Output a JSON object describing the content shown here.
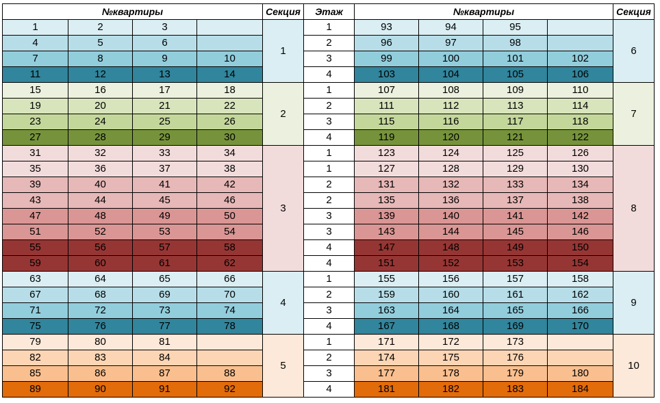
{
  "headers": {
    "apartments": "№квартиры",
    "section": "Секция",
    "floor": "Этаж"
  },
  "palettes": {
    "blue": {
      "section": "#DAEEF3",
      "rows": [
        "#DAEEF3",
        "#B7DEE8",
        "#92CDDC",
        "#31859C"
      ]
    },
    "green": {
      "section": "#EBF1DE",
      "rows": [
        "#EBF1DE",
        "#D8E4BC",
        "#C4D79B",
        "#76933C"
      ]
    },
    "red": {
      "section": "#F2DCDB",
      "rows": [
        "#F2DCDB",
        "#F2DCDB",
        "#E6B8B7",
        "#E6B8B7",
        "#DA9694",
        "#DA9694",
        "#963634",
        "#963634"
      ]
    },
    "orange": {
      "section": "#FDE9D9",
      "rows": [
        "#FDE9D9",
        "#FCD5B4",
        "#FABF8F",
        "#E26B0A"
      ]
    }
  },
  "groups": [
    {
      "palette": "blue",
      "left_section": "1",
      "right_section": "6",
      "rows": [
        {
          "left": [
            "1",
            "2",
            "3",
            ""
          ],
          "floor": "1",
          "right": [
            "93",
            "94",
            "95",
            ""
          ]
        },
        {
          "left": [
            "4",
            "5",
            "6",
            ""
          ],
          "floor": "2",
          "right": [
            "96",
            "97",
            "98",
            ""
          ]
        },
        {
          "left": [
            "7",
            "8",
            "9",
            "10"
          ],
          "floor": "3",
          "right": [
            "99",
            "100",
            "101",
            "102"
          ]
        },
        {
          "left": [
            "11",
            "12",
            "13",
            "14"
          ],
          "floor": "4",
          "right": [
            "103",
            "104",
            "105",
            "106"
          ]
        }
      ]
    },
    {
      "palette": "green",
      "left_section": "2",
      "right_section": "7",
      "rows": [
        {
          "left": [
            "15",
            "16",
            "17",
            "18"
          ],
          "floor": "1",
          "right": [
            "107",
            "108",
            "109",
            "110"
          ]
        },
        {
          "left": [
            "19",
            "20",
            "21",
            "22"
          ],
          "floor": "2",
          "right": [
            "111",
            "112",
            "113",
            "114"
          ]
        },
        {
          "left": [
            "23",
            "24",
            "25",
            "26"
          ],
          "floor": "3",
          "right": [
            "115",
            "116",
            "117",
            "118"
          ]
        },
        {
          "left": [
            "27",
            "28",
            "29",
            "30"
          ],
          "floor": "4",
          "right": [
            "119",
            "120",
            "121",
            "122"
          ]
        }
      ]
    },
    {
      "palette": "red",
      "left_section": "3",
      "right_section": "8",
      "rows": [
        {
          "left": [
            "31",
            "32",
            "33",
            "34"
          ],
          "floor": "1",
          "right": [
            "123",
            "124",
            "125",
            "126"
          ]
        },
        {
          "left": [
            "35",
            "36",
            "37",
            "38"
          ],
          "floor": "1",
          "right": [
            "127",
            "128",
            "129",
            "130"
          ]
        },
        {
          "left": [
            "39",
            "40",
            "41",
            "42"
          ],
          "floor": "2",
          "right": [
            "131",
            "132",
            "133",
            "134"
          ]
        },
        {
          "left": [
            "43",
            "44",
            "45",
            "46"
          ],
          "floor": "2",
          "right": [
            "135",
            "136",
            "137",
            "138"
          ]
        },
        {
          "left": [
            "47",
            "48",
            "49",
            "50"
          ],
          "floor": "3",
          "right": [
            "139",
            "140",
            "141",
            "142"
          ]
        },
        {
          "left": [
            "51",
            "52",
            "53",
            "54"
          ],
          "floor": "3",
          "right": [
            "143",
            "144",
            "145",
            "146"
          ]
        },
        {
          "left": [
            "55",
            "56",
            "57",
            "58"
          ],
          "floor": "4",
          "right": [
            "147",
            "148",
            "149",
            "150"
          ]
        },
        {
          "left": [
            "59",
            "60",
            "61",
            "62"
          ],
          "floor": "4",
          "right": [
            "151",
            "152",
            "153",
            "154"
          ]
        }
      ]
    },
    {
      "palette": "blue",
      "left_section": "4",
      "right_section": "9",
      "rows": [
        {
          "left": [
            "63",
            "64",
            "65",
            "66"
          ],
          "floor": "1",
          "right": [
            "155",
            "156",
            "157",
            "158"
          ]
        },
        {
          "left": [
            "67",
            "68",
            "69",
            "70"
          ],
          "floor": "2",
          "right": [
            "159",
            "160",
            "161",
            "162"
          ]
        },
        {
          "left": [
            "71",
            "72",
            "73",
            "74"
          ],
          "floor": "3",
          "right": [
            "163",
            "164",
            "165",
            "166"
          ]
        },
        {
          "left": [
            "75",
            "76",
            "77",
            "78"
          ],
          "floor": "4",
          "right": [
            "167",
            "168",
            "169",
            "170"
          ]
        }
      ]
    },
    {
      "palette": "orange",
      "left_section": "5",
      "right_section": "10",
      "rows": [
        {
          "left": [
            "79",
            "80",
            "81",
            ""
          ],
          "floor": "1",
          "right": [
            "171",
            "172",
            "173",
            ""
          ]
        },
        {
          "left": [
            "82",
            "83",
            "84",
            ""
          ],
          "floor": "2",
          "right": [
            "174",
            "175",
            "176",
            ""
          ]
        },
        {
          "left": [
            "85",
            "86",
            "87",
            "88"
          ],
          "floor": "3",
          "right": [
            "177",
            "178",
            "179",
            "180"
          ]
        },
        {
          "left": [
            "89",
            "90",
            "91",
            "92"
          ],
          "floor": "4",
          "right": [
            "181",
            "182",
            "183",
            "184"
          ]
        }
      ]
    }
  ]
}
